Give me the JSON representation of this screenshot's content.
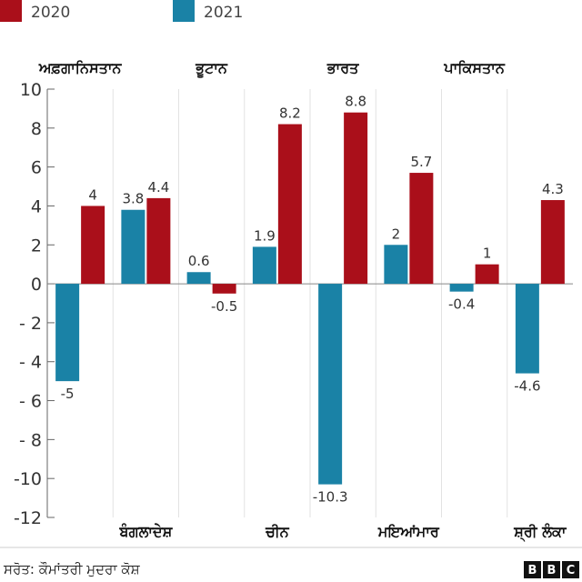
{
  "chart_data": {
    "type": "bar",
    "categories": [
      "ਅਫ਼ਗਾਨਿਸਤਾਨ",
      "ਬੰਗਲਾਦੇਸ਼",
      "ਭੂਟਾਨ",
      "ਚੀਨ",
      "ਭਾਰਤ",
      "ਮਇਆਂਮਾਰ",
      "ਪਾਕਿਸਤਾਨ",
      "ਸ਼੍ਰੀ ਲੰਕਾ"
    ],
    "series": [
      {
        "name": "2020",
        "color": "#aa0f1a",
        "values": [
          4,
          4.4,
          -0.5,
          8.2,
          8.8,
          5.7,
          1,
          4.3
        ],
        "labels": [
          "4",
          "4.4",
          "-0.5",
          "8.2",
          "8.8",
          "5.7",
          "1",
          "4.3"
        ]
      },
      {
        "name": "2021",
        "color": "#1a82a6",
        "values": [
          -5,
          3.8,
          0.6,
          1.9,
          -10.3,
          2,
          -0.4,
          -4.6
        ],
        "labels": [
          "-5",
          "3.8",
          "0.6",
          "1.9",
          "-10.3",
          "2",
          "-0.4",
          "-4.6"
        ]
      }
    ],
    "bar_order": [
      "2021",
      "2020"
    ],
    "top_labels": [
      "ਅਫ਼ਗਾਨਿਸਤਾਨ",
      "ਭੂਟਾਨ",
      "ਭਾਰਤ",
      "ਪਾਕਿਸਤਾਨ"
    ],
    "bottom_labels": [
      "ਬੰਗਲਾਦੇਸ਼",
      "ਚੀਨ",
      "ਮਇਆਂਮਾਰ",
      "ਸ਼੍ਰੀ ਲੰਕਾ"
    ],
    "ylim": [
      -12,
      10
    ],
    "yticks": [
      10,
      8,
      6,
      4,
      2,
      0,
      -2,
      -4,
      -6,
      -8,
      -10,
      -12
    ],
    "ytick_labels": [
      "10",
      "8",
      "6",
      "4",
      "2",
      "0",
      "- 2",
      "- 4",
      "- 6",
      "- 8",
      "-10",
      "-12"
    ],
    "title": "",
    "xlabel": "",
    "ylabel": "",
    "legend_position": "top-left",
    "grid": "vertical-separators"
  },
  "legend": [
    {
      "label": "2020",
      "color": "#aa0f1a"
    },
    {
      "label": "2021",
      "color": "#1a82a6"
    }
  ],
  "footer": {
    "source": "ਸਰੋਤ: ਕੌਮਾਂਤਰੀ ਮੁਦਰਾ ਕੋਸ਼",
    "logo_letters": [
      "B",
      "B",
      "C"
    ]
  }
}
